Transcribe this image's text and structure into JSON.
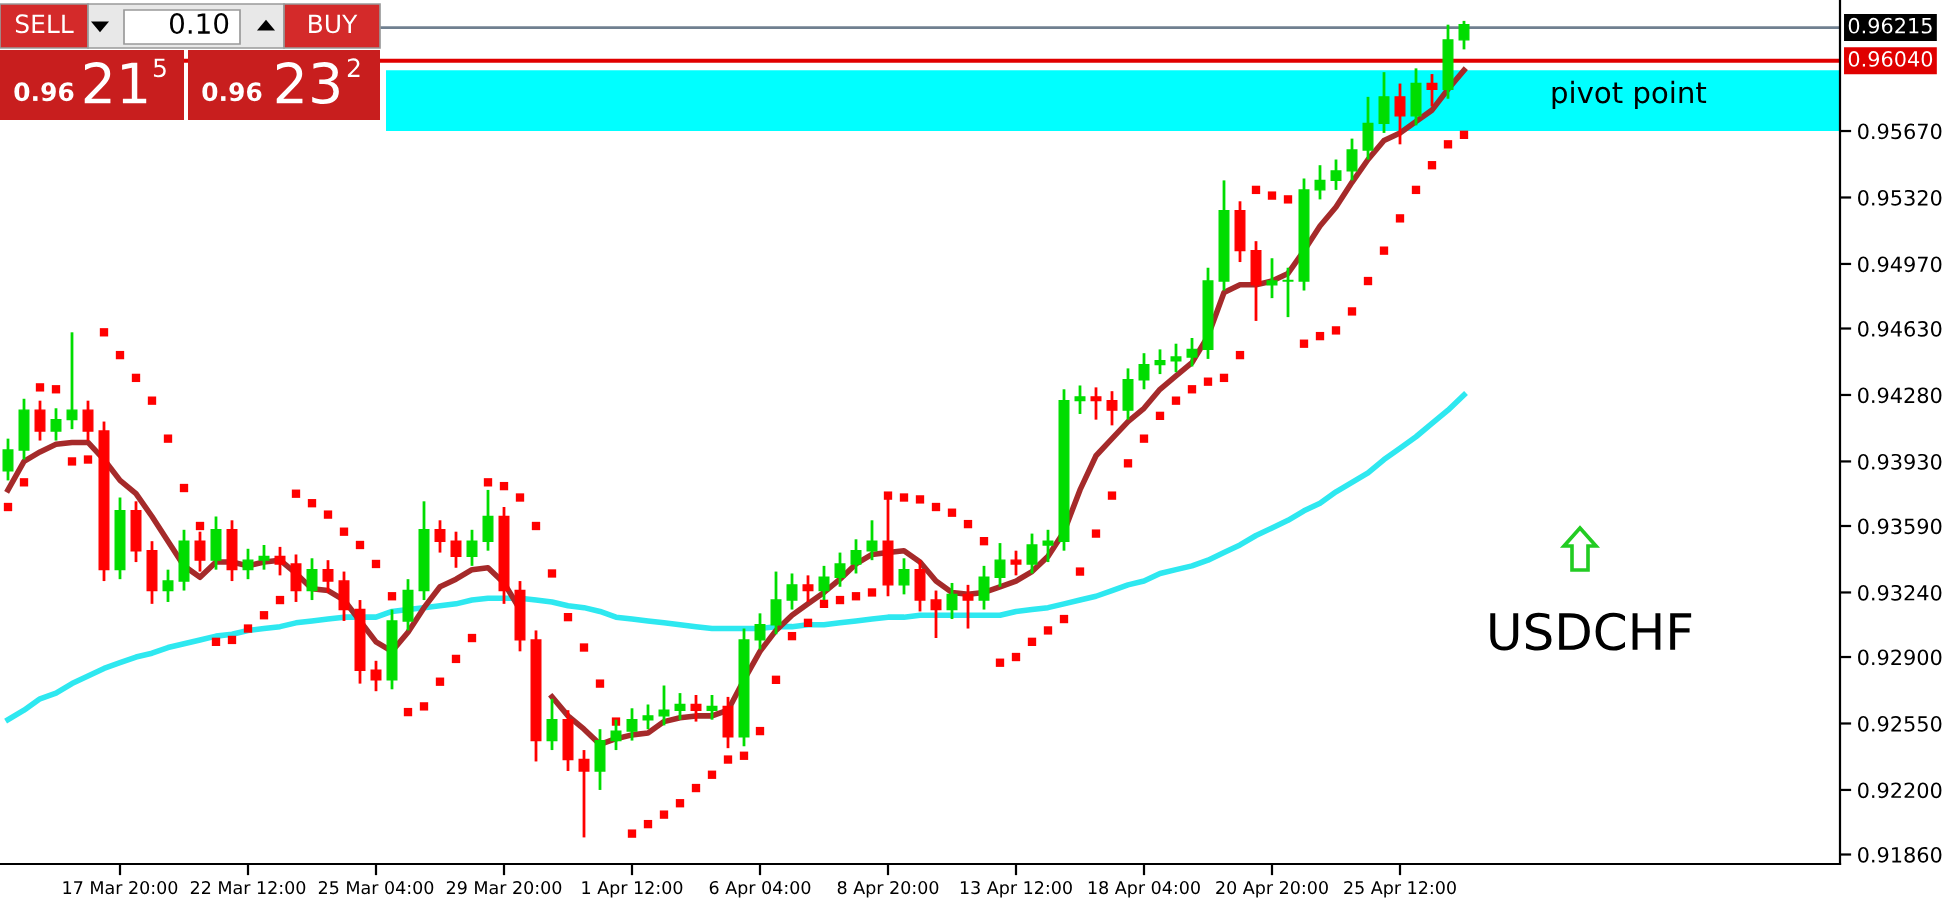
{
  "chart_data": {
    "type": "candlestick",
    "categories": [
      null,
      null,
      null,
      null,
      null,
      null,
      null,
      "17 Mar 20:00",
      null,
      null,
      null,
      null,
      null,
      null,
      null,
      "22 Mar 12:00",
      null,
      null,
      null,
      null,
      null,
      null,
      null,
      "25 Mar 04:00",
      null,
      null,
      null,
      null,
      null,
      null,
      null,
      "29 Mar 20:00",
      null,
      null,
      null,
      null,
      null,
      null,
      null,
      "1 Apr 12:00",
      null,
      null,
      null,
      null,
      null,
      null,
      null,
      "6 Apr 04:00",
      null,
      null,
      null,
      null,
      null,
      null,
      null,
      "8 Apr 20:00",
      null,
      null,
      null,
      null,
      null,
      null,
      null,
      "13 Apr 12:00",
      null,
      null,
      null,
      null,
      null,
      null,
      null,
      "18 Apr 04:00",
      null,
      null,
      null,
      null,
      null,
      null,
      null,
      "20 Apr 20:00",
      null,
      null,
      null,
      null,
      null,
      null,
      null,
      "25 Apr 12:00",
      null,
      null,
      null,
      null
    ],
    "ohlc": [
      [
        0.9388,
        0.9405,
        0.9383,
        0.9399
      ],
      [
        0.9399,
        0.9426,
        0.9394,
        0.942
      ],
      [
        0.942,
        0.9425,
        0.9404,
        0.9409
      ],
      [
        0.9409,
        0.9421,
        0.9404,
        0.9415
      ],
      [
        0.9415,
        0.9461,
        0.941,
        0.942
      ],
      [
        0.942,
        0.9425,
        0.9404,
        0.9409
      ],
      [
        0.9409,
        0.9414,
        0.933,
        0.9336
      ],
      [
        0.9336,
        0.9374,
        0.9331,
        0.9367
      ],
      [
        0.9367,
        0.9372,
        0.934,
        0.9346
      ],
      [
        0.9346,
        0.9351,
        0.9318,
        0.9325
      ],
      [
        0.9325,
        0.9336,
        0.9319,
        0.933
      ],
      [
        0.933,
        0.9357,
        0.9325,
        0.9351
      ],
      [
        0.9351,
        0.9356,
        0.9335,
        0.9341
      ],
      [
        0.9341,
        0.9364,
        0.9336,
        0.9357
      ],
      [
        0.9357,
        0.9362,
        0.933,
        0.9336
      ],
      [
        0.9336,
        0.9347,
        0.9331,
        0.9341
      ],
      [
        0.9341,
        0.9349,
        0.9336,
        0.9343
      ],
      [
        0.9343,
        0.9348,
        0.9333,
        0.9339
      ],
      [
        0.9339,
        0.9344,
        0.9319,
        0.9325
      ],
      [
        0.9325,
        0.9342,
        0.932,
        0.9336
      ],
      [
        0.9336,
        0.9341,
        0.9324,
        0.933
      ],
      [
        0.933,
        0.9335,
        0.9309,
        0.9315
      ],
      [
        0.9315,
        0.932,
        0.9276,
        0.9283
      ],
      [
        0.9283,
        0.9288,
        0.9272,
        0.9278
      ],
      [
        0.9278,
        0.9315,
        0.9273,
        0.9309
      ],
      [
        0.9309,
        0.9331,
        0.9304,
        0.9325
      ],
      [
        0.9325,
        0.9372,
        0.932,
        0.9357
      ],
      [
        0.9357,
        0.9362,
        0.9345,
        0.9351
      ],
      [
        0.9351,
        0.9356,
        0.9337,
        0.9343
      ],
      [
        0.9343,
        0.9357,
        0.9338,
        0.9351
      ],
      [
        0.9351,
        0.9378,
        0.9346,
        0.9364
      ],
      [
        0.9364,
        0.9369,
        0.9318,
        0.9325
      ],
      [
        0.9325,
        0.933,
        0.9293,
        0.9299
      ],
      [
        0.9299,
        0.9304,
        0.9235,
        0.9246
      ],
      [
        0.9246,
        0.9268,
        0.9241,
        0.9257
      ],
      [
        0.9257,
        0.9262,
        0.923,
        0.9236
      ],
      [
        0.9236,
        0.9241,
        0.9195,
        0.923
      ],
      [
        0.923,
        0.9252,
        0.922,
        0.9246
      ],
      [
        0.9246,
        0.9257,
        0.9241,
        0.9251
      ],
      [
        0.9251,
        0.9263,
        0.9246,
        0.9257
      ],
      [
        0.9257,
        0.9265,
        0.9252,
        0.9259
      ],
      [
        0.9259,
        0.9275,
        0.9254,
        0.9262
      ],
      [
        0.9262,
        0.9271,
        0.9257,
        0.9265
      ],
      [
        0.9265,
        0.927,
        0.9256,
        0.9262
      ],
      [
        0.9262,
        0.927,
        0.9257,
        0.9264
      ],
      [
        0.9264,
        0.9269,
        0.9242,
        0.9248
      ],
      [
        0.9248,
        0.9305,
        0.9243,
        0.9299
      ],
      [
        0.9299,
        0.9313,
        0.9294,
        0.9307
      ],
      [
        0.9307,
        0.9335,
        0.9302,
        0.932
      ],
      [
        0.932,
        0.9334,
        0.9315,
        0.9328
      ],
      [
        0.9328,
        0.9333,
        0.9319,
        0.9325
      ],
      [
        0.9325,
        0.9338,
        0.932,
        0.9332
      ],
      [
        0.9332,
        0.9345,
        0.9327,
        0.9339
      ],
      [
        0.9339,
        0.9352,
        0.9334,
        0.9346
      ],
      [
        0.9346,
        0.9362,
        0.9341,
        0.9351
      ],
      [
        0.9351,
        0.9375,
        0.9322,
        0.9328
      ],
      [
        0.9328,
        0.9342,
        0.9323,
        0.9336
      ],
      [
        0.9336,
        0.9341,
        0.9314,
        0.932
      ],
      [
        0.932,
        0.9325,
        0.93,
        0.9315
      ],
      [
        0.9315,
        0.9329,
        0.931,
        0.9323
      ],
      [
        0.9323,
        0.9328,
        0.9305,
        0.932
      ],
      [
        0.932,
        0.9338,
        0.9315,
        0.9332
      ],
      [
        0.9332,
        0.935,
        0.9327,
        0.9341
      ],
      [
        0.9341,
        0.9346,
        0.9333,
        0.9339
      ],
      [
        0.9339,
        0.9355,
        0.9334,
        0.9349
      ],
      [
        0.9349,
        0.9357,
        0.934,
        0.9351
      ],
      [
        0.9351,
        0.9431,
        0.9346,
        0.9425
      ],
      [
        0.9425,
        0.9433,
        0.9418,
        0.9427
      ],
      [
        0.9427,
        0.9432,
        0.9415,
        0.9425
      ],
      [
        0.9425,
        0.943,
        0.9412,
        0.942
      ],
      [
        0.942,
        0.9442,
        0.9415,
        0.9436
      ],
      [
        0.9436,
        0.945,
        0.9431,
        0.9444
      ],
      [
        0.9444,
        0.9452,
        0.9439,
        0.9446
      ],
      [
        0.9446,
        0.9455,
        0.944,
        0.9448
      ],
      [
        0.9448,
        0.9458,
        0.9443,
        0.9452
      ],
      [
        0.9452,
        0.9495,
        0.9447,
        0.9488
      ],
      [
        0.9488,
        0.9541,
        0.9483,
        0.9525
      ],
      [
        0.9525,
        0.953,
        0.9498,
        0.9504
      ],
      [
        0.9504,
        0.9509,
        0.9467,
        0.9486
      ],
      [
        0.9486,
        0.95,
        0.9479,
        0.9488
      ],
      [
        0.9488,
        0.9495,
        0.9469,
        0.9488
      ],
      [
        0.9488,
        0.9542,
        0.9483,
        0.9536
      ],
      [
        0.9536,
        0.9549,
        0.9531,
        0.9541
      ],
      [
        0.9541,
        0.9552,
        0.9536,
        0.9546
      ],
      [
        0.9546,
        0.9563,
        0.9541,
        0.9557
      ],
      [
        0.9557,
        0.9585,
        0.9552,
        0.9571
      ],
      [
        0.9571,
        0.9598,
        0.9566,
        0.9585
      ],
      [
        0.9585,
        0.9592,
        0.956,
        0.9575
      ],
      [
        0.9575,
        0.96,
        0.957,
        0.9592
      ],
      [
        0.9592,
        0.9597,
        0.958,
        0.9589
      ],
      [
        0.9589,
        0.9623,
        0.9584,
        0.9615
      ],
      [
        0.9615,
        0.9625,
        0.961,
        0.9623
      ]
    ],
    "series": [
      {
        "type": "line",
        "color": "#2ee8f0",
        "values": [
          0.9257,
          0.9262,
          0.9268,
          0.9271,
          0.9276,
          0.928,
          0.9284,
          0.9287,
          0.929,
          0.9292,
          0.9295,
          0.9297,
          0.9299,
          0.9301,
          0.9302,
          0.9304,
          0.9305,
          0.9306,
          0.9308,
          0.9309,
          0.931,
          0.9311,
          0.9311,
          0.9311,
          0.9314,
          0.9315,
          0.9316,
          0.9317,
          0.9318,
          0.932,
          0.9321,
          0.9321,
          0.9321,
          0.932,
          0.9319,
          0.9317,
          0.9316,
          0.9314,
          0.9311,
          0.931,
          0.9309,
          0.9308,
          0.9307,
          0.9306,
          0.9305,
          0.9305,
          0.9305,
          0.9305,
          0.9306,
          0.9306,
          0.9307,
          0.9307,
          0.9308,
          0.9309,
          0.931,
          0.9311,
          0.9311,
          0.9312,
          0.9312,
          0.9312,
          0.9312,
          0.9312,
          0.9312,
          0.9314,
          0.9315,
          0.9316,
          0.9318,
          0.932,
          0.9322,
          0.9325,
          0.9328,
          0.933,
          0.9334,
          0.9336,
          0.9338,
          0.9341,
          0.9345,
          0.9349,
          0.9354,
          0.9358,
          0.9362,
          0.9367,
          0.9371,
          0.9377,
          0.9382,
          0.9387,
          0.9394,
          0.94,
          0.9406,
          0.9413,
          0.942,
          0.9428
        ]
      },
      {
        "type": "line",
        "color": "#a52a2a",
        "values": [
          0.9378,
          0.9393,
          0.9398,
          0.9402,
          0.9403,
          0.9403,
          0.9394,
          0.9383,
          0.9376,
          0.9364,
          0.9351,
          0.9338,
          0.9332,
          0.934,
          0.934,
          0.9338,
          0.934,
          0.9341,
          0.9334,
          0.9326,
          0.9325,
          0.932,
          0.9309,
          0.9298,
          0.9293,
          0.9303,
          0.9316,
          0.9327,
          0.9331,
          0.9336,
          0.9337,
          0.9329,
          0.9315,
          null,
          0.9269,
          0.9259,
          0.9252,
          0.9244,
          0.9247,
          0.9249,
          0.925,
          0.9256,
          0.9258,
          0.9259,
          0.9259,
          0.9262,
          0.9278,
          0.9293,
          0.9304,
          0.9312,
          0.9318,
          0.9324,
          0.9331,
          0.9339,
          0.9344,
          0.9345,
          0.9346,
          0.934,
          0.933,
          0.9324,
          0.9323,
          0.9324,
          0.9327,
          0.933,
          0.9335,
          0.9343,
          0.9356,
          0.9378,
          0.9396,
          0.9405,
          0.9414,
          0.9421,
          0.9431,
          0.9438,
          0.9445,
          0.9459,
          0.9482,
          0.9486,
          0.9486,
          0.9488,
          0.9492,
          0.9504,
          0.9517,
          0.9527,
          0.954,
          0.9552,
          0.9562,
          0.9566,
          0.9572,
          0.9578,
          0.9589,
          0.9599
        ]
      },
      {
        "type": "scatter",
        "color": "#ff0000",
        "marker": "square",
        "values": [
          0.9369,
          0.9382,
          0.9432,
          0.9431,
          0.9393,
          0.9394,
          0.9461,
          0.9449,
          0.9437,
          0.9425,
          0.9405,
          0.9379,
          0.9359,
          0.9298,
          0.9299,
          0.9305,
          0.9312,
          0.932,
          0.9376,
          0.9371,
          0.9365,
          0.9356,
          0.9349,
          0.9339,
          0.9322,
          0.9261,
          0.9264,
          0.9277,
          0.9289,
          0.93,
          0.9382,
          0.938,
          0.9374,
          0.9359,
          0.9334,
          0.9311,
          0.9295,
          0.9276,
          0.9256,
          0.9197,
          0.9202,
          0.9207,
          0.9213,
          0.9221,
          0.9228,
          0.9236,
          0.9238,
          0.9251,
          0.9278,
          0.9301,
          0.9308,
          0.9318,
          0.932,
          0.9322,
          0.9324,
          0.9375,
          0.9374,
          0.9373,
          0.9369,
          0.9366,
          0.936,
          0.9351,
          0.9287,
          0.929,
          0.9298,
          0.9304,
          0.931,
          0.9335,
          0.9355,
          0.9375,
          0.9392,
          0.9405,
          0.9417,
          0.9425,
          0.9431,
          0.9435,
          0.9437,
          0.9449,
          0.9536,
          0.9533,
          0.9531,
          0.9455,
          0.9459,
          0.9462,
          0.9472,
          0.9488,
          0.9504,
          0.9521,
          0.9536,
          0.9549,
          0.956,
          0.9565
        ]
      }
    ],
    "ylim": [
      0.9181,
      0.9636
    ],
    "yticks": [
      {
        "value": 0.9186,
        "label": "0.91860"
      },
      {
        "value": 0.922,
        "label": "0.92200"
      },
      {
        "value": 0.9255,
        "label": "0.92550"
      },
      {
        "value": 0.929,
        "label": "0.92900"
      },
      {
        "value": 0.9324,
        "label": "0.93240"
      },
      {
        "value": 0.9359,
        "label": "0.93590"
      },
      {
        "value": 0.9393,
        "label": "0.93930"
      },
      {
        "value": 0.9428,
        "label": "0.94280"
      },
      {
        "value": 0.9463,
        "label": "0.94630"
      },
      {
        "value": 0.9497,
        "label": "0.94970"
      },
      {
        "value": 0.9532,
        "label": "0.95320"
      },
      {
        "value": 0.9567,
        "label": "0.95670"
      }
    ],
    "ref_lines": [
      {
        "axis": "y",
        "value": 0.9604,
        "label": "0.96040",
        "color": "#e00000"
      },
      {
        "axis": "y",
        "value": 0.96215,
        "label": "0.96215",
        "color": "#708090"
      }
    ],
    "bands": [
      {
        "axis": "y",
        "from": 0.9567,
        "to": 0.9599,
        "label": "pivot point",
        "color": "#00ffff"
      }
    ],
    "annotations": [
      "SELL",
      "0.10",
      "BUY",
      "0.96",
      "21",
      "5",
      "0.96",
      "23",
      "2",
      "USDCHF"
    ],
    "grid": false,
    "legend": false
  }
}
